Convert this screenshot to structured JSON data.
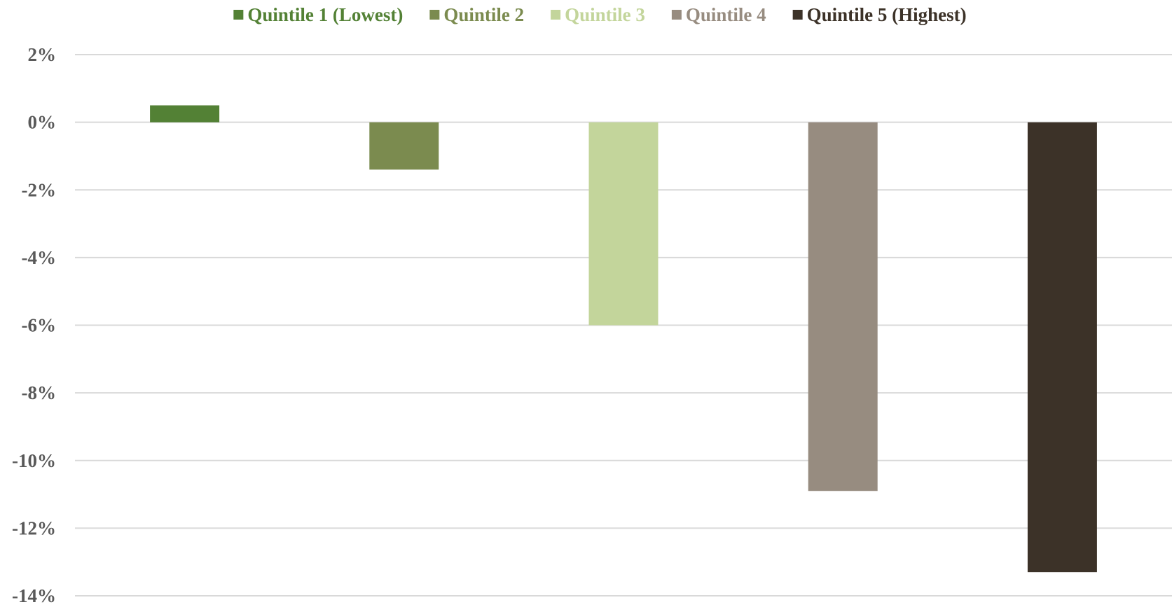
{
  "chart_data": {
    "type": "bar",
    "title": "",
    "xlabel": "",
    "ylabel": "",
    "ylim": [
      -14,
      2
    ],
    "y_ticks": [
      2,
      0,
      -2,
      -4,
      -6,
      -8,
      -10,
      -12,
      -14
    ],
    "y_tick_labels": [
      "2%",
      "0%",
      "-2%",
      "-4%",
      "-6%",
      "-8%",
      "-10%",
      "-12%",
      "-14%"
    ],
    "y_unit": "%",
    "grid": true,
    "legend_position": "top-center",
    "series": [
      {
        "name": "Quintile 1 (Lowest)",
        "value": 0.5,
        "color": "#538135"
      },
      {
        "name": "Quintile 2",
        "value": -1.4,
        "color": "#7b8b4f"
      },
      {
        "name": "Quintile 3",
        "value": -6.0,
        "color": "#c3d59b"
      },
      {
        "name": "Quintile 4",
        "value": -10.9,
        "color": "#978c80"
      },
      {
        "name": "Quintile 5 (Highest)",
        "value": -13.3,
        "color": "#3c3228"
      }
    ],
    "colors": {
      "gridline": "#d9d9d9",
      "tick_label": "#595959"
    }
  }
}
